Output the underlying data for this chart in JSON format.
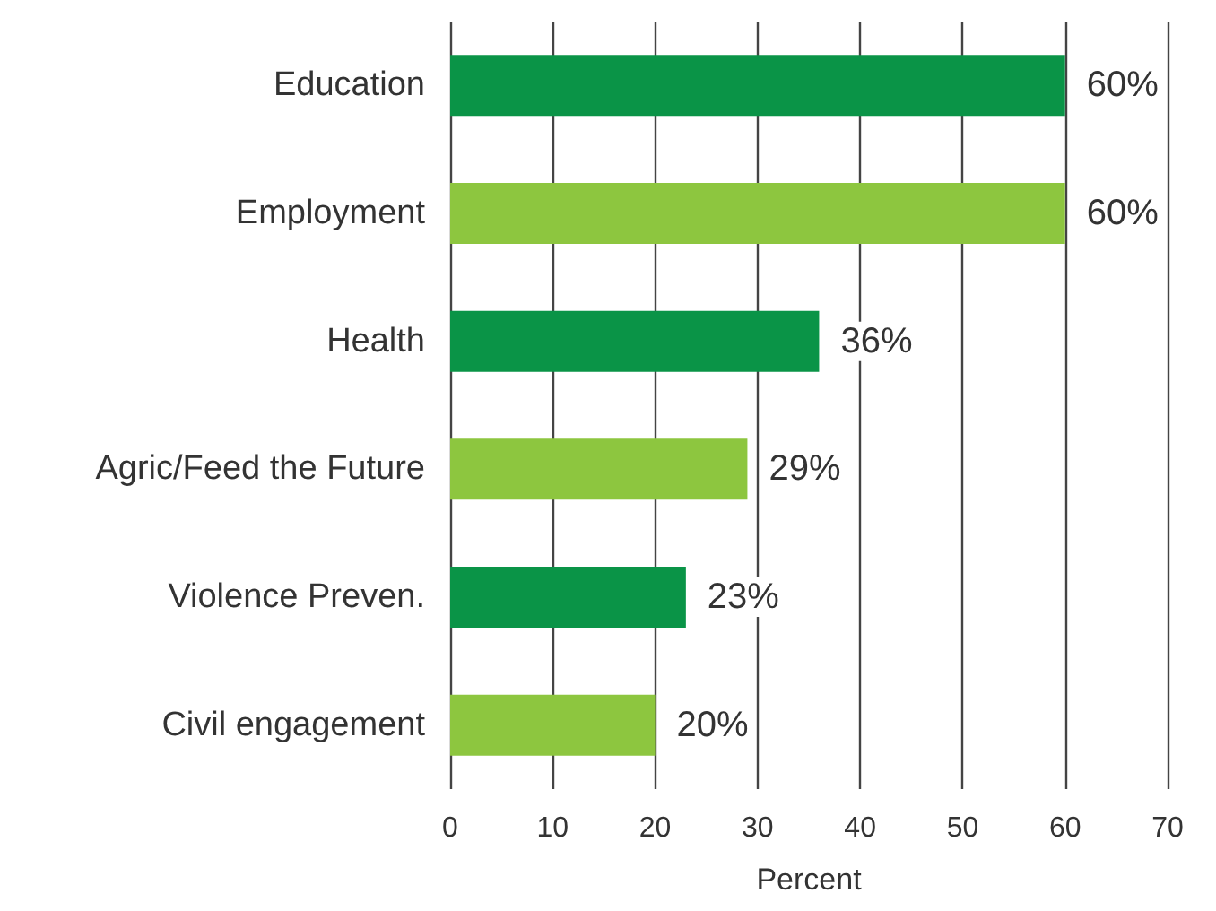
{
  "chart_data": {
    "type": "bar",
    "orientation": "horizontal",
    "xlabel": "Percent",
    "categories": [
      "Education",
      "Employment",
      "Health",
      "Agric/Feed the Future",
      "Violence Preven.",
      "Civil engagement"
    ],
    "values": [
      60,
      60,
      36,
      29,
      23,
      20
    ],
    "colors": [
      "#0a9447",
      "#8dc63f",
      "#0a9447",
      "#8dc63f",
      "#0a9447",
      "#8dc63f"
    ],
    "value_labels": [
      "60%",
      "60%",
      "36%",
      "29%",
      "23%",
      "20%"
    ],
    "xlim": [
      0,
      70
    ],
    "xticks": [
      0,
      10,
      20,
      30,
      40,
      50,
      60,
      70
    ],
    "grid": "x"
  }
}
